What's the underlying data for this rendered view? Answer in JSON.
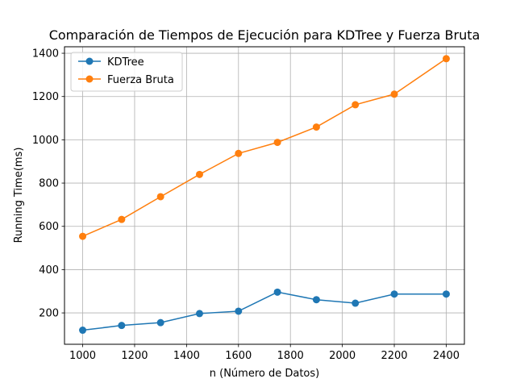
{
  "chart_data": {
    "type": "line",
    "title": "Comparación de Tiempos de Ejecución para KDTree y Fuerza Bruta",
    "xlabel": "n (Número de Datos)",
    "ylabel": "Running Time(ms)",
    "x": [
      1000,
      1150,
      1300,
      1450,
      1600,
      1750,
      1900,
      2050,
      2200,
      2400
    ],
    "xlim": [
      930,
      2470
    ],
    "ylim": [
      55,
      1430
    ],
    "xticks": [
      1000,
      1200,
      1400,
      1600,
      1800,
      2000,
      2200,
      2400
    ],
    "yticks": [
      200,
      400,
      600,
      800,
      1000,
      1200,
      1400
    ],
    "grid": true,
    "legend_position": "top-left",
    "series": [
      {
        "name": "KDTree",
        "color": "#1f77b4",
        "marker": "circle",
        "values": [
          120,
          142,
          155,
          197,
          208,
          296,
          261,
          245,
          287,
          287
        ]
      },
      {
        "name": "Fuerza Bruta",
        "color": "#ff7f0e",
        "marker": "circle",
        "values": [
          554,
          632,
          737,
          840,
          937,
          988,
          1059,
          1162,
          1211,
          1375
        ]
      }
    ]
  }
}
